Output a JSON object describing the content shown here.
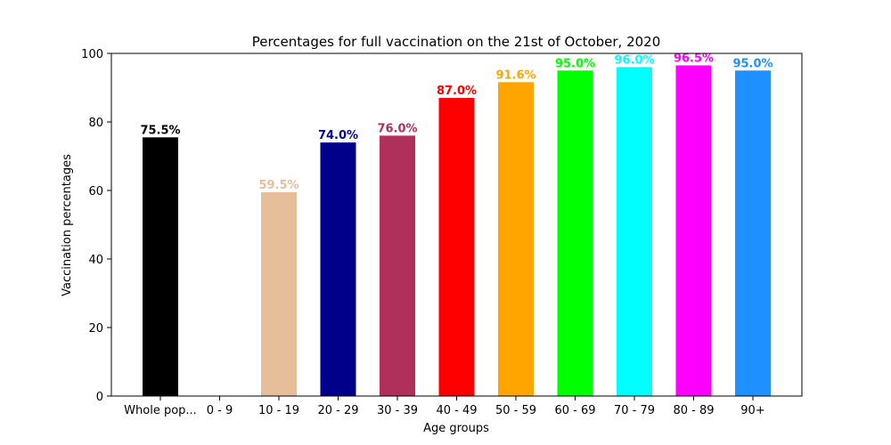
{
  "chart_data": {
    "type": "bar",
    "title": "Percentages for full vaccination on the 21st of October, 2020",
    "xlabel": "Age groups",
    "ylabel": "Vaccination percentages",
    "ylim": [
      0,
      100
    ],
    "yticks": [
      0,
      20,
      40,
      60,
      80,
      100
    ],
    "grid": false,
    "categories": [
      "Whole pop...",
      "0 - 9",
      "10 - 19",
      "20 - 29",
      "30 - 39",
      "40 - 49",
      "50 - 59",
      "60 - 69",
      "70 - 79",
      "80 - 89",
      "90+"
    ],
    "values": [
      75.5,
      0,
      59.5,
      74.0,
      76.0,
      87.0,
      91.6,
      95.0,
      96.0,
      96.5,
      95.0
    ],
    "labels": [
      "75.5%",
      "",
      "59.5%",
      "74.0%",
      "76.0%",
      "87.0%",
      "91.6%",
      "95.0%",
      "96.0%",
      "96.5%",
      "95.0%"
    ],
    "colors": [
      "#000000",
      "#ffffff",
      "#e6be9a",
      "#00008b",
      "#b0305c",
      "#ff0000",
      "#ffa500",
      "#00ff00",
      "#00ffff",
      "#ff00ff",
      "#1e90ff"
    ]
  }
}
